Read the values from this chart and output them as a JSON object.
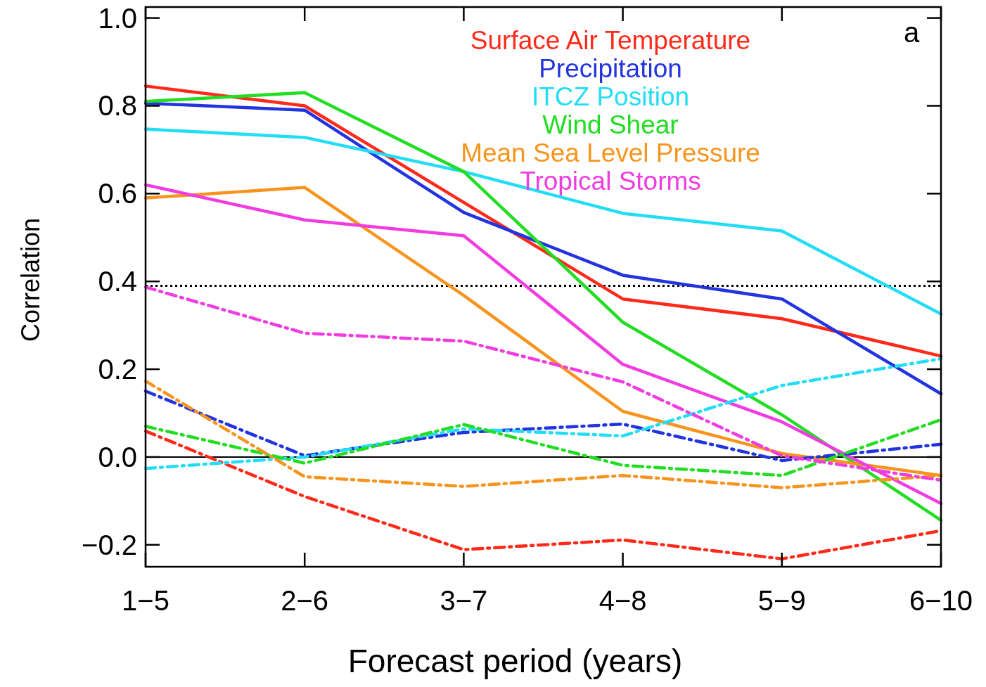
{
  "chart_data": {
    "type": "line",
    "xlabel": "Forecast period (years)",
    "ylabel": "Correlation",
    "categories": [
      "1−5",
      "2−6",
      "3−7",
      "4−8",
      "5−9",
      "6−10"
    ],
    "ylim": [
      -0.25,
      1.025
    ],
    "yticks": [
      {
        "value": -0.2,
        "label": "−0.2"
      },
      "0.0",
      0.2,
      0.4,
      0.6,
      0.8,
      "1.0"
    ],
    "legend": "top right",
    "grid": false,
    "marker": "none",
    "series": [
      {
        "name": "Surface Air Temperature",
        "color": "#ff2a1a",
        "line_style": "solid",
        "values": [
          0.845,
          0.8,
          0.58,
          0.36,
          0.315,
          0.23
        ]
      },
      {
        "name": "Precipitation",
        "color": "#2233e0",
        "line_style": "solid",
        "values": [
          0.806,
          0.79,
          0.557,
          0.414,
          0.36,
          0.144
        ]
      },
      {
        "name": "ITCZ Position",
        "color": "#22ddf5",
        "line_style": "solid",
        "values": [
          0.747,
          0.728,
          0.65,
          0.555,
          0.515,
          0.326
        ]
      },
      {
        "name": "Wind Shear",
        "color": "#22dd22",
        "line_style": "solid",
        "values": [
          0.81,
          0.83,
          0.65,
          0.307,
          0.096,
          -0.144
        ]
      },
      {
        "name": "Mean Sea Level Pressure",
        "color": "#f7941d",
        "line_style": "solid",
        "values": [
          0.59,
          0.614,
          0.368,
          0.104,
          0.008,
          -0.042
        ]
      },
      {
        "name": "Tropical Storms",
        "color": "#f03ce0",
        "line_style": "solid",
        "values": [
          0.62,
          0.54,
          0.504,
          0.211,
          0.08,
          -0.106
        ]
      },
      {
        "color": "#ff2a1a",
        "line_style": "dashed",
        "values": [
          0.059,
          -0.09,
          -0.211,
          -0.189,
          -0.232,
          -0.168
        ]
      },
      {
        "color": "#2233e0",
        "line_style": "dashed",
        "values": [
          0.15,
          0.003,
          0.056,
          0.075,
          -0.008,
          0.029
        ]
      },
      {
        "color": "#22ddf5",
        "line_style": "dashed",
        "values": [
          -0.026,
          0.0,
          0.064,
          0.048,
          0.163,
          0.224
        ]
      },
      {
        "color": "#22dd22",
        "line_style": "dashed",
        "values": [
          0.07,
          -0.014,
          0.074,
          -0.019,
          -0.042,
          0.085
        ]
      },
      {
        "color": "#f7941d",
        "line_style": "dashed",
        "values": [
          0.173,
          -0.045,
          -0.067,
          -0.042,
          -0.07,
          -0.042
        ]
      },
      {
        "color": "#f03ce0",
        "line_style": "dashed",
        "values": [
          0.387,
          0.282,
          0.264,
          0.171,
          0.003,
          -0.053
        ]
      }
    ],
    "ref_lines": [
      {
        "axis": "y",
        "value": 0,
        "color": "#000000",
        "line_style": "solid"
      },
      {
        "axis": "y",
        "value": 0.39,
        "color": "#000000",
        "line_style": "dotted"
      }
    ],
    "annotations": [
      "a"
    ]
  }
}
